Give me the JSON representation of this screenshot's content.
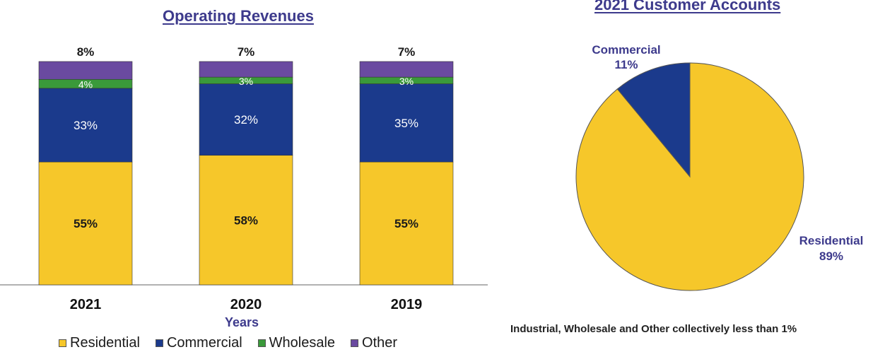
{
  "chart_data": [
    {
      "type": "bar",
      "stacked": true,
      "title": "Operating Revenues",
      "xlabel": "Years",
      "categories": [
        "2021",
        "2020",
        "2019"
      ],
      "series": [
        {
          "name": "Residential",
          "color": "#f6c72a",
          "values": [
            55,
            58,
            55
          ],
          "labels": [
            "55%",
            "58%",
            "55%"
          ]
        },
        {
          "name": "Commercial",
          "color": "#1b3a8c",
          "values": [
            33,
            32,
            35
          ],
          "labels": [
            "33%",
            "32%",
            "35%"
          ]
        },
        {
          "name": "Wholesale",
          "color": "#3a9a3a",
          "values": [
            4,
            3,
            3
          ],
          "labels": [
            "4%",
            "3%",
            "3%"
          ]
        },
        {
          "name": "Other",
          "color": "#6a4aa0",
          "values": [
            8,
            7,
            7
          ],
          "labels": [
            "8%",
            "7%",
            "7%"
          ]
        }
      ],
      "ylim": [
        0,
        100
      ],
      "legend_position": "bottom"
    },
    {
      "type": "pie",
      "title": "2021 Customer Accounts",
      "slices": [
        {
          "name": "Residential",
          "value": 89,
          "label": "89%",
          "color": "#f6c72a"
        },
        {
          "name": "Commercial",
          "value": 11,
          "label": "11%",
          "color": "#1b3a8c"
        }
      ],
      "note": "Industrial, Wholesale and Other collectively less than 1%"
    }
  ],
  "legend": [
    {
      "label": "Residential",
      "color": "#f6c72a"
    },
    {
      "label": "Commercial",
      "color": "#1b3a8c"
    },
    {
      "label": "Wholesale",
      "color": "#3a9a3a"
    },
    {
      "label": "Other",
      "color": "#6a4aa0"
    }
  ]
}
